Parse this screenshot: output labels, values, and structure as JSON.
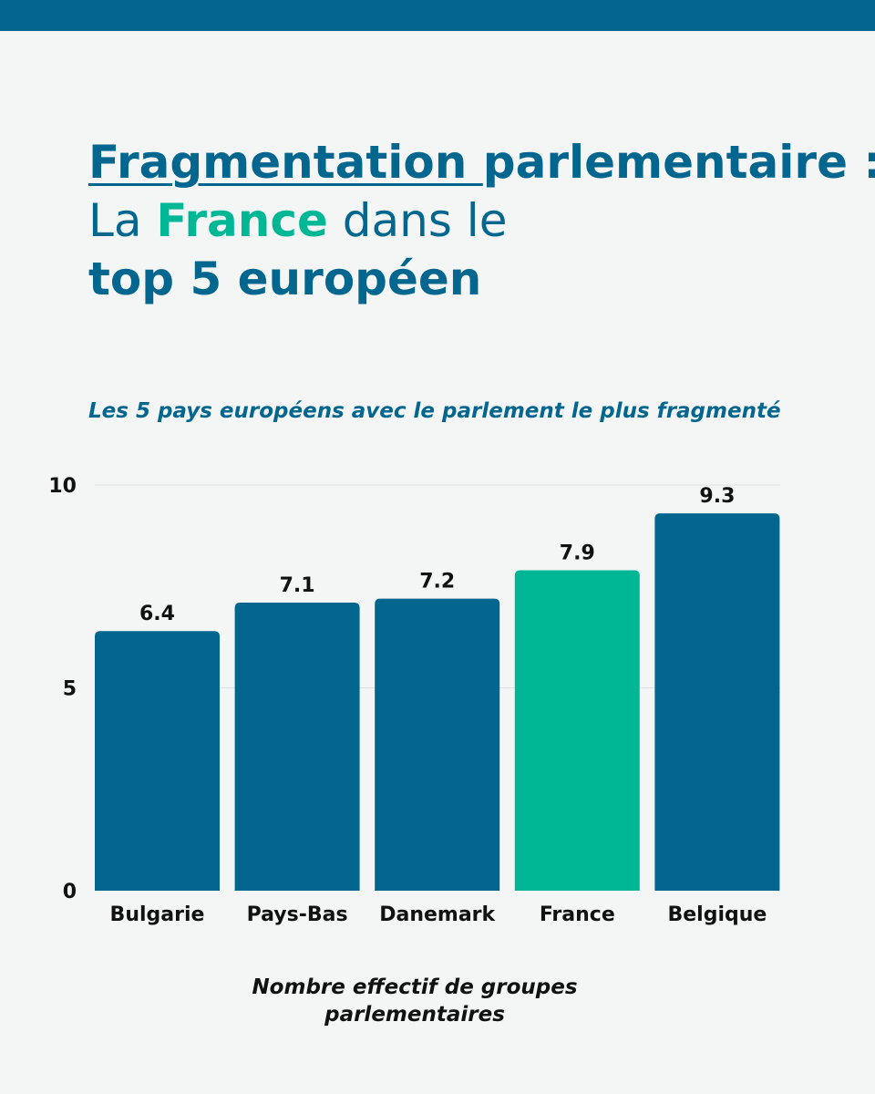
{
  "title": {
    "part1": "Fragmentation ",
    "part2": "parlementaire :",
    "line2_prefix": "La ",
    "line2_highlight": "France",
    "line2_suffix": " dans le",
    "line3": "top 5 européen",
    "highlight_color": "#00b795"
  },
  "chart_data": {
    "type": "bar",
    "title": "Fragmentation parlementaire : La France dans le top 5 européen",
    "subtitle": "Les 5 pays européens avec le parlement le plus fragmenté",
    "categories": [
      "Bulgarie",
      "Pays-Bas",
      "Danemark",
      "France",
      "Belgique"
    ],
    "values": [
      6.4,
      7.1,
      7.2,
      7.9,
      9.3
    ],
    "value_labels": [
      "6.4",
      "7.1",
      "7.2",
      "7.9",
      "9.3"
    ],
    "xlabel": "Nombre effectif de groupes parlementaires",
    "ylabel": "",
    "ylim": [
      0,
      10
    ],
    "yticks": [
      "0",
      "5",
      "10"
    ],
    "grid": true,
    "colors": {
      "default": "#03668f",
      "highlight": "#00b795",
      "highlight_category": "France"
    }
  }
}
